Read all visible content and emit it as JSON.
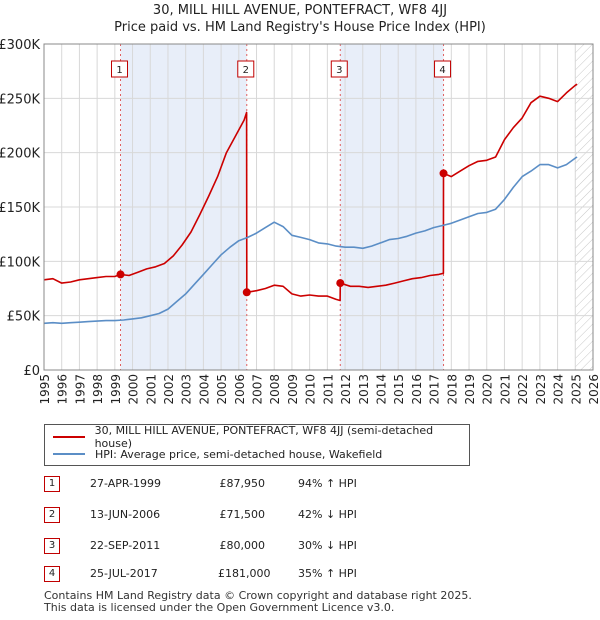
{
  "title_line1": "30, MILL HILL AVENUE, PONTEFRACT, WF8 4JJ",
  "title_line2": "Price paid vs. HM Land Registry's House Price Index (HPI)",
  "legend": {
    "property": "30, MILL HILL AVENUE, PONTEFRACT, WF8 4JJ (semi-detached house)",
    "hpi": "HPI: Average price, semi-detached house, Wakefield"
  },
  "colors": {
    "property": "#cc0000",
    "hpi": "#5b8ec6",
    "shade": "#e8eef9",
    "grid": "#d8d8d8"
  },
  "transactions": [
    {
      "num": "1",
      "date": "27-APR-1999",
      "price": "£87,950",
      "hpi": "94% ↑ HPI"
    },
    {
      "num": "2",
      "date": "13-JUN-2006",
      "price": "£71,500",
      "hpi": "42% ↓ HPI"
    },
    {
      "num": "3",
      "date": "22-SEP-2011",
      "price": "£80,000",
      "hpi": "30% ↓ HPI"
    },
    {
      "num": "4",
      "date": "25-JUL-2017",
      "price": "£181,000",
      "hpi": "35% ↑ HPI"
    }
  ],
  "footer": {
    "line1": "Contains HM Land Registry data © Crown copyright and database right 2025.",
    "line2": "This data is licensed under the Open Government Licence v3.0."
  },
  "chart_data": {
    "type": "line",
    "title": "Price paid vs. HM Land Registry's House Price Index (HPI)",
    "xlabel": "",
    "ylabel": "",
    "xlim": [
      1995,
      2026
    ],
    "ylim": [
      0,
      300000
    ],
    "x_ticks": [
      "1995",
      "1996",
      "1997",
      "1998",
      "1999",
      "2000",
      "2001",
      "2002",
      "2003",
      "2004",
      "2005",
      "2006",
      "2007",
      "2008",
      "2009",
      "2010",
      "2011",
      "2012",
      "2013",
      "2014",
      "2015",
      "2016",
      "2017",
      "2018",
      "2019",
      "2020",
      "2021",
      "2022",
      "2023",
      "2024",
      "2025",
      "2026"
    ],
    "y_ticks": [
      {
        "value": 0,
        "label": "£0"
      },
      {
        "value": 50000,
        "label": "£50K"
      },
      {
        "value": 100000,
        "label": "£100K"
      },
      {
        "value": 150000,
        "label": "£150K"
      },
      {
        "value": 200000,
        "label": "£200K"
      },
      {
        "value": 250000,
        "label": "£250K"
      },
      {
        "value": 300000,
        "label": "£300K"
      }
    ],
    "shaded_periods": [
      [
        1999.32,
        2006.45
      ],
      [
        2011.73,
        2017.56
      ]
    ],
    "future_hatch_from": 2025.0,
    "sale_markers": [
      {
        "label": "1",
        "x": 1999.32,
        "y": 87950
      },
      {
        "label": "2",
        "x": 2006.45,
        "y": 71500
      },
      {
        "label": "3",
        "x": 2011.73,
        "y": 80000
      },
      {
        "label": "4",
        "x": 2017.56,
        "y": 181000
      }
    ],
    "series": [
      {
        "name": "30, MILL HILL AVENUE, PONTEFRACT, WF8 4JJ (semi-detached house)",
        "x": [
          1995.0,
          1995.5,
          1996.0,
          1996.5,
          1997.0,
          1997.5,
          1998.0,
          1998.5,
          1999.0,
          1999.32,
          1999.8,
          2000.3,
          2000.8,
          2001.3,
          2001.8,
          2002.3,
          2002.8,
          2003.3,
          2003.8,
          2004.3,
          2004.8,
          2005.3,
          2005.8,
          2006.3,
          2006.44,
          2006.45,
          2007.0,
          2007.5,
          2008.0,
          2008.5,
          2009.0,
          2009.5,
          2010.0,
          2010.5,
          2011.0,
          2011.5,
          2011.72,
          2011.73,
          2012.3,
          2012.8,
          2013.3,
          2013.8,
          2014.3,
          2014.8,
          2015.3,
          2015.8,
          2016.3,
          2016.8,
          2017.3,
          2017.55,
          2017.56,
          2018.0,
          2018.5,
          2019.0,
          2019.5,
          2020.0,
          2020.5,
          2021.0,
          2021.5,
          2022.0,
          2022.5,
          2023.0,
          2023.5,
          2024.0,
          2024.5,
          2025.0,
          2025.1
        ],
        "y": [
          83000,
          84000,
          80000,
          81000,
          83000,
          84000,
          85000,
          86000,
          86000,
          87950,
          87000,
          90000,
          93000,
          95000,
          98000,
          105000,
          115000,
          127000,
          143000,
          160000,
          178000,
          200000,
          215000,
          230000,
          237000,
          71500,
          73000,
          75000,
          78000,
          77000,
          70000,
          68000,
          69000,
          68000,
          68000,
          65000,
          64000,
          80000,
          77000,
          77000,
          76000,
          77000,
          78000,
          80000,
          82000,
          84000,
          85000,
          87000,
          88000,
          89000,
          181000,
          178000,
          183000,
          188000,
          192000,
          193000,
          196000,
          212000,
          223000,
          232000,
          246000,
          252000,
          250000,
          247000,
          255000,
          262000,
          263000
        ]
      },
      {
        "name": "HPI: Average price, semi-detached house, Wakefield",
        "x": [
          1995.0,
          1995.5,
          1996.0,
          1996.5,
          1997.0,
          1997.5,
          1998.0,
          1998.5,
          1999.0,
          1999.5,
          2000.0,
          2000.5,
          2001.0,
          2001.5,
          2002.0,
          2002.5,
          2003.0,
          2003.5,
          2004.0,
          2004.5,
          2005.0,
          2005.5,
          2006.0,
          2006.5,
          2007.0,
          2007.5,
          2008.0,
          2008.5,
          2009.0,
          2009.5,
          2010.0,
          2010.5,
          2011.0,
          2011.5,
          2012.0,
          2012.5,
          2013.0,
          2013.5,
          2014.0,
          2014.5,
          2015.0,
          2015.5,
          2016.0,
          2016.5,
          2017.0,
          2017.5,
          2018.0,
          2018.5,
          2019.0,
          2019.5,
          2020.0,
          2020.5,
          2021.0,
          2021.5,
          2022.0,
          2022.5,
          2023.0,
          2023.5,
          2024.0,
          2024.5,
          2025.0,
          2025.1
        ],
        "y": [
          43000,
          43500,
          43000,
          43500,
          44000,
          44500,
          45000,
          45500,
          45500,
          46000,
          47000,
          48000,
          50000,
          52000,
          56000,
          63000,
          70000,
          79000,
          88000,
          97000,
          106000,
          113000,
          119000,
          122000,
          126000,
          131000,
          136000,
          132000,
          124000,
          122000,
          120000,
          117000,
          116000,
          114000,
          113000,
          113000,
          112000,
          114000,
          117000,
          120000,
          121000,
          123000,
          126000,
          128000,
          131000,
          133000,
          135000,
          138000,
          141000,
          144000,
          145000,
          148000,
          157000,
          168000,
          178000,
          183000,
          189000,
          189000,
          186000,
          189000,
          195000,
          196000
        ]
      }
    ]
  }
}
